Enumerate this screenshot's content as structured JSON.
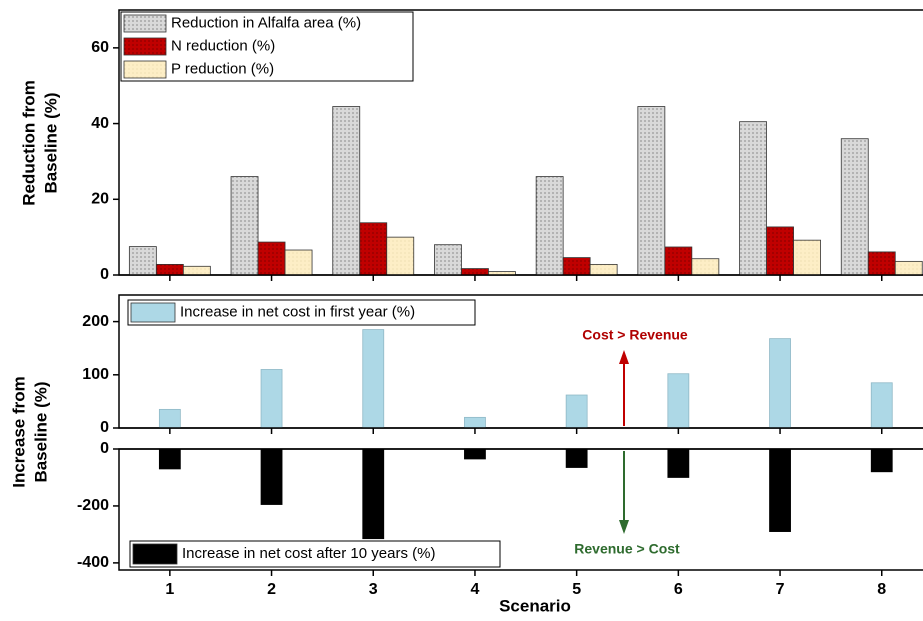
{
  "chart_data": [
    {
      "type": "bar",
      "ylabel": [
        "Reduction from",
        "Baseline (%)"
      ],
      "series": [
        {
          "name": "Reduction in Alfalfa area (%)",
          "color": "#d9d9d9",
          "values": [
            7.5,
            26,
            44.5,
            8,
            26,
            44.5,
            40.5,
            36
          ]
        },
        {
          "name": "N reduction (%)",
          "color": "#c00000",
          "values": [
            2.8,
            8.7,
            13.8,
            1.7,
            4.6,
            7.4,
            12.7,
            6.1
          ]
        },
        {
          "name": "P reduction (%)",
          "color": "#fdeec6",
          "values": [
            2.3,
            6.6,
            10,
            0.9,
            2.8,
            4.3,
            9.2,
            3.6
          ]
        }
      ],
      "ylim": [
        0,
        70
      ],
      "yticks": [
        0,
        20,
        40,
        60
      ],
      "legend": "upper left"
    },
    {
      "type": "bar",
      "ylabel": [
        "Increase from",
        "Baseline (%)"
      ],
      "annotation": "Cost > Revenue",
      "series": [
        {
          "name": "Increase in net cost in first year (%)",
          "color": "#add8e6",
          "values": [
            35,
            110,
            185,
            20,
            62,
            102,
            168,
            85
          ]
        }
      ],
      "ylim": [
        0,
        250
      ],
      "yticks": [
        0,
        100,
        200
      ],
      "legend": "upper left"
    },
    {
      "type": "bar",
      "xlabel": "Scenario",
      "annotation": "Revenue > Cost",
      "categories": [
        "1",
        "2",
        "3",
        "4",
        "5",
        "6",
        "7",
        "8"
      ],
      "series": [
        {
          "name": "Increase in net cost after 10 years (%)",
          "color": "#000000",
          "values": [
            -70,
            -195,
            -315,
            -35,
            -65,
            -100,
            -290,
            -80
          ]
        }
      ],
      "ylim": [
        -425,
        0
      ],
      "yticks": [
        -400,
        -200,
        0
      ],
      "legend": "lower left"
    }
  ]
}
